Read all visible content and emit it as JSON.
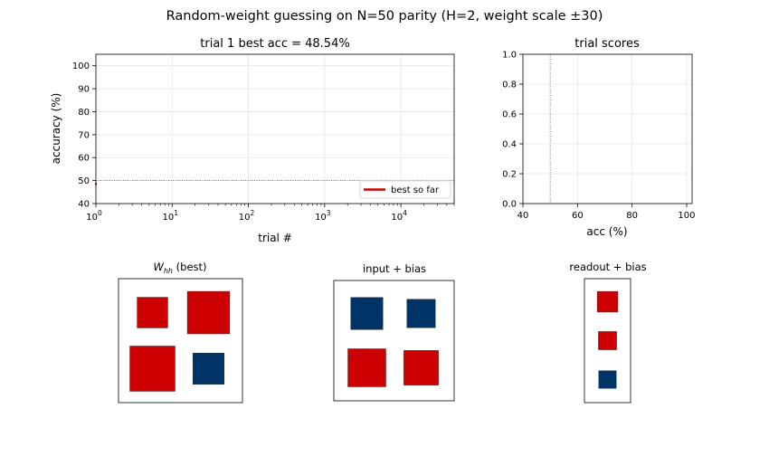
{
  "figure": {
    "title": "Random-weight guessing on N=50 parity   (H=2, weight scale ±30)"
  },
  "colors": {
    "positive": "#cc0000",
    "negative": "#003366",
    "legend_line": "#cc0000",
    "grid": "#e6e6e6"
  },
  "chart_data": [
    {
      "id": "progress",
      "type": "line",
      "title": "trial 1   best acc = 48.54%",
      "xlabel": "trial #",
      "ylabel": "accuracy (%)",
      "xscale": "log",
      "xlim": [
        1,
        50000
      ],
      "ylim": [
        40,
        105
      ],
      "xticks": [
        {
          "value": 1,
          "base": "10",
          "exp": "0"
        },
        {
          "value": 10,
          "base": "10",
          "exp": "1"
        },
        {
          "value": 100,
          "base": "10",
          "exp": "2"
        },
        {
          "value": 1000,
          "base": "10",
          "exp": "3"
        },
        {
          "value": 10000,
          "base": "10",
          "exp": "4"
        }
      ],
      "yticks": [
        40,
        50,
        60,
        70,
        80,
        90,
        100
      ],
      "reference_line": {
        "y": 50,
        "style": "dotted"
      },
      "series": [
        {
          "name": "best so far",
          "x": [
            1
          ],
          "y": [
            48.54
          ]
        }
      ],
      "legend": {
        "position": "lower-right"
      },
      "grid": true
    },
    {
      "id": "scores",
      "type": "histogram",
      "title": "trial scores",
      "xlabel": "acc (%)",
      "ylabel": "",
      "xlim": [
        40,
        102
      ],
      "ylim": [
        0,
        1
      ],
      "xticks": [
        40,
        60,
        80,
        100
      ],
      "yticks": [
        "0.0",
        "0.2",
        "0.4",
        "0.6",
        "0.8",
        "1.0"
      ],
      "reference_line": {
        "x": 50,
        "style": "dotted"
      },
      "values": [],
      "grid": true
    },
    {
      "id": "whh",
      "type": "hinton",
      "title_main": "W",
      "title_sub": "hh",
      "title_rest": " (best)",
      "rows": 2,
      "cols": 2,
      "matrix": [
        [
          0.46,
          0.88
        ],
        [
          1.0,
          -0.48
        ]
      ]
    },
    {
      "id": "input",
      "type": "hinton",
      "title": "input + bias",
      "rows": 2,
      "cols": 2,
      "matrix": [
        [
          -0.72,
          -0.56
        ],
        [
          1.0,
          0.83
        ]
      ]
    },
    {
      "id": "readout",
      "type": "hinton",
      "title": "readout + bias",
      "rows": 3,
      "cols": 1,
      "matrix": [
        [
          0.58
        ],
        [
          0.45
        ],
        [
          -0.42
        ]
      ]
    }
  ]
}
